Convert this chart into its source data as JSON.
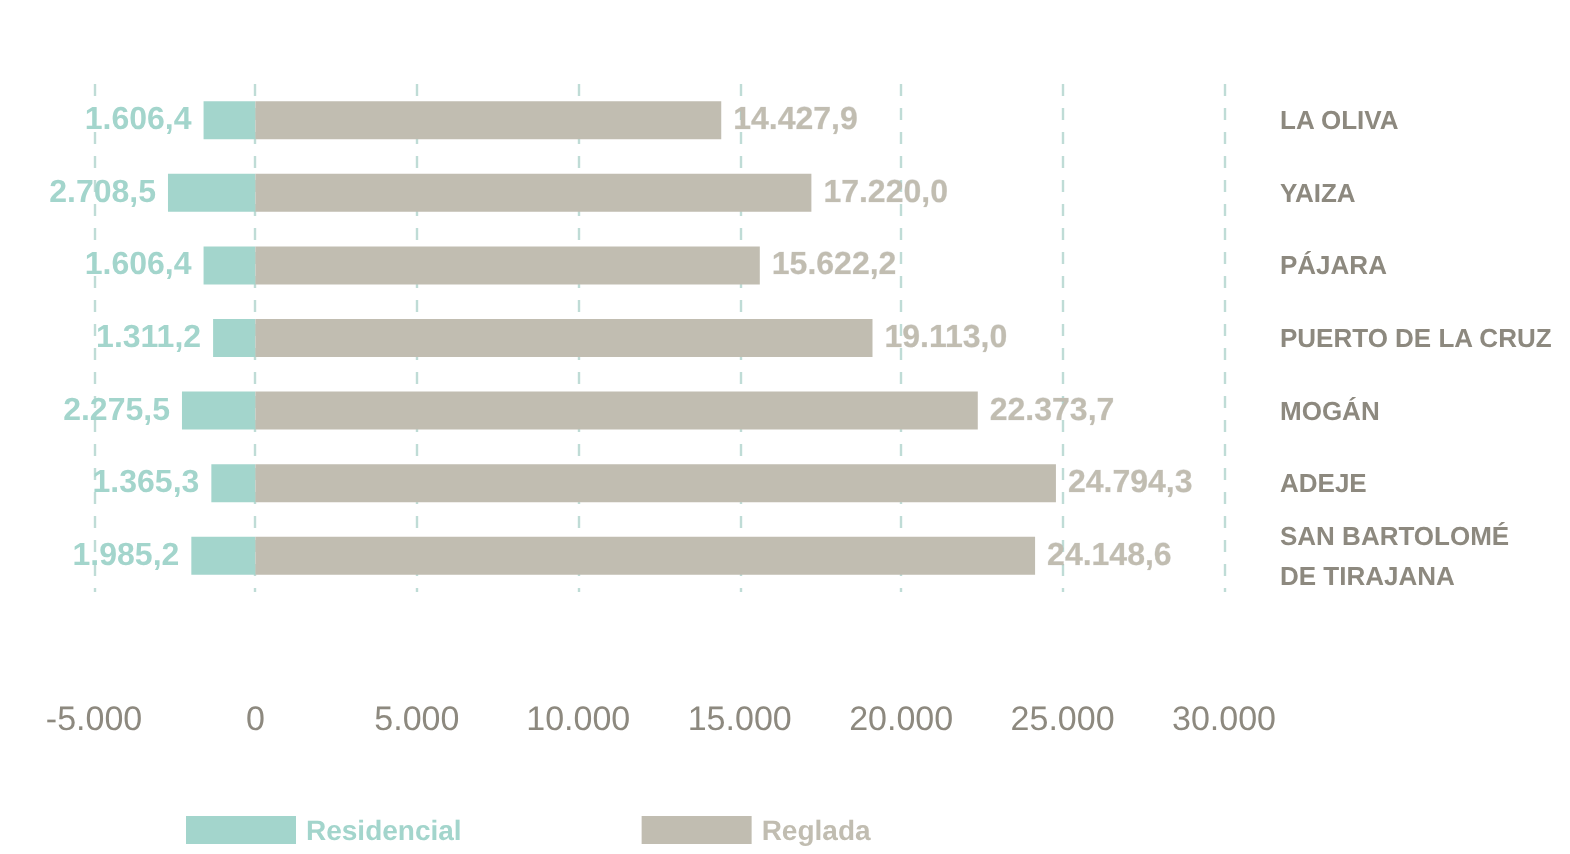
{
  "chart_data": {
    "type": "bar",
    "orientation": "horizontal",
    "categories": [
      "LA OLIVA",
      "YAIZA",
      "PÁJARA",
      "PUERTO DE LA CRUZ",
      "MOGÁN",
      "ADEJE",
      "SAN BARTOLOMÉ DE TIRAJANA"
    ],
    "series": [
      {
        "name": "Residencial",
        "color": "#a3d5cc",
        "values": [
          1606.4,
          2708.5,
          1606.4,
          1311.2,
          2275.5,
          1365.3,
          1985.2
        ],
        "base": [
          -1606.4,
          -2708.5,
          -1606.4,
          -1311.2,
          -2275.5,
          -1365.3,
          -1985.2
        ],
        "value_labels": [
          "1.606,4",
          "2.708,5",
          "1.606,4",
          "1.311,2",
          "2.275,5",
          "1.365,3",
          "1.985,2"
        ]
      },
      {
        "name": "Reglada",
        "color": "#c1bdb1",
        "values": [
          14427.9,
          17220.0,
          15622.2,
          19113.0,
          22373.7,
          24794.3,
          24148.6
        ],
        "value_labels": [
          "14.427,9",
          "17.220,0",
          "15.622,2",
          "19.113,0",
          "22.373,7",
          "24.794,3",
          "24.148,6"
        ]
      }
    ],
    "xlim": [
      -5000,
      30000
    ],
    "xticks": [
      {
        "value": -5000,
        "label": "-5.000"
      },
      0,
      {
        "value": 5000,
        "label": "5.000"
      },
      {
        "value": 10000,
        "label": "10.000"
      },
      {
        "value": 15000,
        "label": "15.000"
      },
      {
        "value": 20000,
        "label": "20.000"
      },
      {
        "value": 25000,
        "label": "25.000"
      },
      {
        "value": 30000,
        "label": "30.000"
      }
    ],
    "grid": "x",
    "legend": "bottom"
  }
}
